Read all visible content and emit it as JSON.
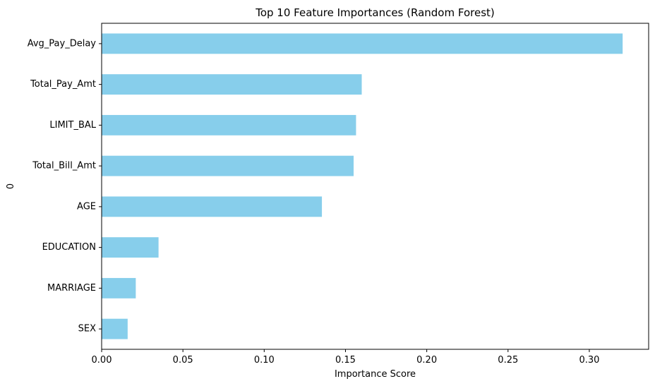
{
  "chart_data": {
    "type": "bar",
    "orientation": "horizontal",
    "title": "Top 10 Feature Importances (Random Forest)",
    "xlabel": "Importance Score",
    "ylabel": "0",
    "categories": [
      "Avg_Pay_Delay",
      "Total_Pay_Amt",
      "LIMIT_BAL",
      "Total_Bill_Amt",
      "AGE",
      "EDUCATION",
      "MARRIAGE",
      "SEX"
    ],
    "values": [
      0.3205,
      0.16,
      0.1565,
      0.155,
      0.1355,
      0.035,
      0.021,
      0.016
    ],
    "xlim": [
      0,
      0.3365
    ],
    "xticks": [
      "0.00",
      "0.05",
      "0.10",
      "0.15",
      "0.20",
      "0.25",
      "0.30"
    ],
    "bar_color": "#87ceeb",
    "grid": false,
    "legend": "none"
  }
}
